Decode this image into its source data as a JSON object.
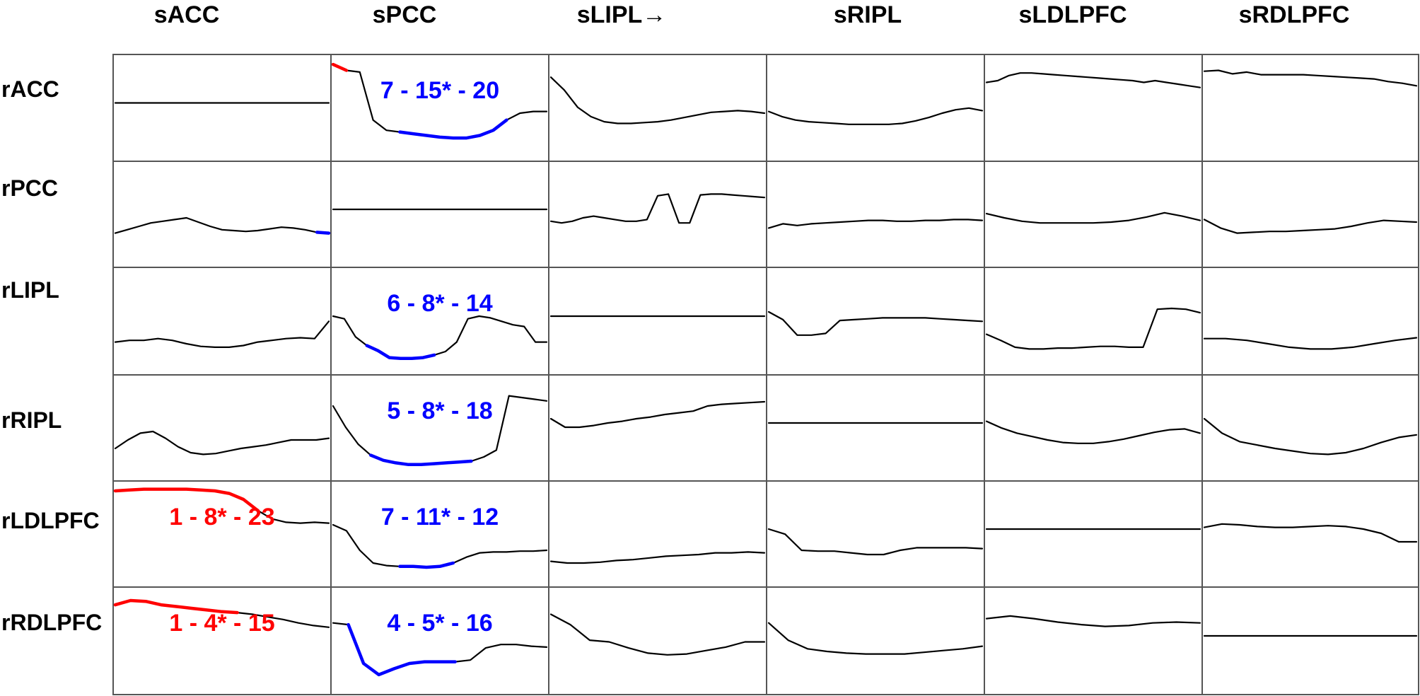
{
  "chart_data": {
    "type": "line",
    "column_headers": [
      "sACC",
      "sPCC",
      "sLIPL→",
      "sRIPL",
      "sLDLPFC",
      "sRDLPFC"
    ],
    "row_headers": [
      "rACC",
      "rPCC",
      "rLIPL",
      "rRIPL",
      "rLDLPFC",
      "rRDLPFC"
    ],
    "y_range": [
      0,
      1
    ],
    "colors": {
      "default": "#000000",
      "positive": "#ff0000",
      "negative": "#0000ff"
    },
    "cells": [
      [
        {
          "y": [
            0.5,
            0.5
          ]
        },
        {
          "y": [
            0.95,
            0.88,
            0.86,
            0.3,
            0.18,
            0.16,
            0.14,
            0.12,
            0.1,
            0.09,
            0.09,
            0.12,
            0.18,
            0.3,
            0.38,
            0.4,
            0.4
          ],
          "segments": [
            {
              "from": 0,
              "to": 1,
              "color": "positive"
            },
            {
              "from": 5,
              "to": 13,
              "color": "negative"
            }
          ],
          "label": "7 - 15* - 20",
          "label_color": "negative"
        },
        {
          "y": [
            0.8,
            0.65,
            0.45,
            0.34,
            0.28,
            0.26,
            0.26,
            0.27,
            0.28,
            0.3,
            0.33,
            0.36,
            0.39,
            0.4,
            0.41,
            0.4,
            0.38
          ]
        },
        {
          "y": [
            0.4,
            0.34,
            0.3,
            0.28,
            0.27,
            0.26,
            0.25,
            0.25,
            0.25,
            0.25,
            0.26,
            0.29,
            0.33,
            0.38,
            0.42,
            0.44,
            0.41
          ]
        },
        {
          "y": [
            0.74,
            0.76,
            0.82,
            0.85,
            0.85,
            0.84,
            0.83,
            0.82,
            0.81,
            0.8,
            0.79,
            0.78,
            0.77,
            0.76,
            0.74,
            0.76,
            0.74,
            0.72,
            0.7,
            0.68
          ]
        },
        {
          "y": [
            0.87,
            0.88,
            0.84,
            0.86,
            0.83,
            0.83,
            0.83,
            0.83,
            0.82,
            0.81,
            0.8,
            0.79,
            0.78,
            0.75,
            0.73,
            0.7
          ]
        }
      ],
      [
        {
          "y": [
            0.22,
            0.26,
            0.3,
            0.34,
            0.36,
            0.38,
            0.4,
            0.35,
            0.3,
            0.26,
            0.25,
            0.24,
            0.25,
            0.27,
            0.29,
            0.28,
            0.26,
            0.23,
            0.22
          ],
          "segments": [
            {
              "from": 17,
              "to": 18,
              "color": "negative"
            }
          ]
        },
        {
          "y": [
            0.5,
            0.5
          ]
        },
        {
          "y": [
            0.36,
            0.34,
            0.36,
            0.4,
            0.42,
            0.4,
            0.38,
            0.36,
            0.36,
            0.38,
            0.66,
            0.68,
            0.34,
            0.34,
            0.67,
            0.68,
            0.68,
            0.67,
            0.66,
            0.65,
            0.64
          ]
        },
        {
          "y": [
            0.28,
            0.33,
            0.31,
            0.33,
            0.34,
            0.35,
            0.36,
            0.37,
            0.37,
            0.36,
            0.36,
            0.37,
            0.37,
            0.38,
            0.38,
            0.37
          ]
        },
        {
          "y": [
            0.45,
            0.4,
            0.36,
            0.34,
            0.34,
            0.34,
            0.34,
            0.35,
            0.37,
            0.41,
            0.46,
            0.42,
            0.37
          ]
        },
        {
          "y": [
            0.38,
            0.28,
            0.22,
            0.23,
            0.24,
            0.24,
            0.25,
            0.26,
            0.27,
            0.3,
            0.34,
            0.37,
            0.36,
            0.35
          ]
        }
      ],
      [
        {
          "y": [
            0.2,
            0.22,
            0.22,
            0.24,
            0.22,
            0.18,
            0.15,
            0.14,
            0.14,
            0.16,
            0.2,
            0.22,
            0.24,
            0.25,
            0.24,
            0.44
          ]
        },
        {
          "y": [
            0.5,
            0.47,
            0.26,
            0.16,
            0.1,
            0.02,
            0.01,
            0.01,
            0.02,
            0.05,
            0.09,
            0.2,
            0.47,
            0.5,
            0.48,
            0.44,
            0.4,
            0.38,
            0.2,
            0.2
          ],
          "segments": [
            {
              "from": 3,
              "to": 9,
              "color": "negative"
            }
          ],
          "label": "6 - 8* - 14",
          "label_color": "negative"
        },
        {
          "y": [
            0.5,
            0.5
          ]
        },
        {
          "y": [
            0.55,
            0.46,
            0.28,
            0.28,
            0.3,
            0.45,
            0.46,
            0.47,
            0.48,
            0.48,
            0.48,
            0.48,
            0.47,
            0.46,
            0.45,
            0.44
          ]
        },
        {
          "y": [
            0.29,
            0.22,
            0.14,
            0.12,
            0.12,
            0.13,
            0.13,
            0.14,
            0.15,
            0.15,
            0.14,
            0.14,
            0.58,
            0.59,
            0.58,
            0.54
          ]
        },
        {
          "y": [
            0.24,
            0.24,
            0.22,
            0.18,
            0.14,
            0.12,
            0.12,
            0.14,
            0.18,
            0.22,
            0.25
          ]
        }
      ],
      [
        {
          "y": [
            0.2,
            0.3,
            0.38,
            0.4,
            0.32,
            0.22,
            0.15,
            0.13,
            0.14,
            0.17,
            0.2,
            0.22,
            0.24,
            0.27,
            0.3,
            0.3,
            0.3,
            0.32
          ]
        },
        {
          "y": [
            0.7,
            0.45,
            0.25,
            0.12,
            0.06,
            0.03,
            0.01,
            0.01,
            0.02,
            0.03,
            0.04,
            0.05,
            0.1,
            0.18,
            0.82,
            0.8,
            0.78,
            0.76
          ],
          "segments": [
            {
              "from": 3,
              "to": 11,
              "color": "negative"
            }
          ],
          "label": "5 - 8* - 18",
          "label_color": "negative"
        },
        {
          "y": [
            0.55,
            0.45,
            0.45,
            0.47,
            0.5,
            0.52,
            0.55,
            0.57,
            0.6,
            0.62,
            0.64,
            0.7,
            0.72,
            0.73,
            0.74,
            0.75
          ]
        },
        {
          "y": [
            0.5,
            0.5
          ]
        },
        {
          "y": [
            0.52,
            0.44,
            0.38,
            0.34,
            0.3,
            0.27,
            0.26,
            0.26,
            0.28,
            0.31,
            0.35,
            0.39,
            0.42,
            0.43,
            0.38
          ]
        },
        {
          "y": [
            0.55,
            0.38,
            0.28,
            0.24,
            0.2,
            0.17,
            0.14,
            0.13,
            0.15,
            0.2,
            0.27,
            0.33,
            0.36
          ]
        }
      ],
      [
        {
          "y": [
            0.95,
            0.96,
            0.97,
            0.97,
            0.97,
            0.97,
            0.96,
            0.95,
            0.92,
            0.85,
            0.72,
            0.62,
            0.58,
            0.57,
            0.58,
            0.57
          ],
          "segments": [
            {
              "from": 0,
              "to": 10,
              "color": "positive"
            }
          ],
          "label": "1 - 8* - 23",
          "label_color": "positive"
        },
        {
          "y": [
            0.55,
            0.48,
            0.25,
            0.1,
            0.07,
            0.06,
            0.06,
            0.05,
            0.06,
            0.1,
            0.17,
            0.22,
            0.23,
            0.23,
            0.24,
            0.24,
            0.25
          ],
          "segments": [
            {
              "from": 5,
              "to": 9,
              "color": "negative"
            }
          ],
          "label": "7 - 11* - 12",
          "label_color": "negative"
        },
        {
          "y": [
            0.12,
            0.1,
            0.1,
            0.11,
            0.13,
            0.14,
            0.16,
            0.18,
            0.19,
            0.2,
            0.22,
            0.22,
            0.23,
            0.22
          ]
        },
        {
          "y": [
            0.5,
            0.44,
            0.25,
            0.24,
            0.24,
            0.22,
            0.2,
            0.2,
            0.25,
            0.28,
            0.28,
            0.28,
            0.28,
            0.27
          ]
        },
        {
          "y": [
            0.5,
            0.5
          ]
        },
        {
          "y": [
            0.52,
            0.56,
            0.55,
            0.53,
            0.52,
            0.52,
            0.53,
            0.54,
            0.53,
            0.5,
            0.45,
            0.35,
            0.35
          ]
        }
      ],
      [
        {
          "y": [
            0.86,
            0.91,
            0.9,
            0.86,
            0.84,
            0.82,
            0.8,
            0.78,
            0.77,
            0.75,
            0.72,
            0.69,
            0.65,
            0.62,
            0.6
          ],
          "segments": [
            {
              "from": 0,
              "to": 8,
              "color": "positive"
            }
          ],
          "label": "1 - 4* - 15",
          "label_color": "positive"
        },
        {
          "y": [
            0.65,
            0.63,
            0.18,
            0.05,
            0.12,
            0.18,
            0.2,
            0.2,
            0.2,
            0.22,
            0.36,
            0.4,
            0.4,
            0.38,
            0.37
          ],
          "segments": [
            {
              "from": 1,
              "to": 8,
              "color": "negative"
            }
          ],
          "label": "4 - 5* - 16",
          "label_color": "negative"
        },
        {
          "y": [
            0.75,
            0.63,
            0.45,
            0.43,
            0.36,
            0.3,
            0.28,
            0.29,
            0.33,
            0.37,
            0.43,
            0.43
          ]
        },
        {
          "y": [
            0.65,
            0.45,
            0.35,
            0.32,
            0.3,
            0.29,
            0.29,
            0.29,
            0.31,
            0.33,
            0.35,
            0.38
          ]
        },
        {
          "y": [
            0.7,
            0.73,
            0.7,
            0.66,
            0.63,
            0.61,
            0.62,
            0.65,
            0.66,
            0.65
          ]
        },
        {
          "y": [
            0.5,
            0.5
          ]
        }
      ]
    ]
  }
}
